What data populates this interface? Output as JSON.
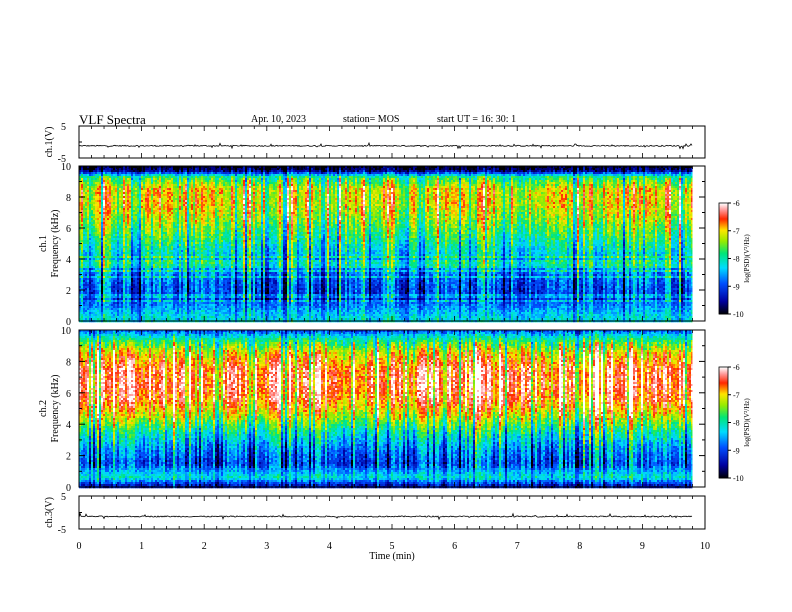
{
  "header": {
    "title": "VLF Spectra",
    "date": "Apr. 10, 2023",
    "station": "station= MOS",
    "start": "start  UT =   16: 30: 1"
  },
  "chart_data": [
    {
      "type": "line",
      "panel": "ch1-waveform",
      "ylabel": "ch.1(V)",
      "ylim": [
        -5,
        5
      ],
      "yticks": [
        "5",
        "-5"
      ],
      "x_range_min": [
        0,
        9.8
      ],
      "baseline_v": -1.2,
      "series_color": "#000000"
    },
    {
      "type": "heatmap",
      "panel": "ch1-spectrogram",
      "ylabel_lines": [
        "ch.1",
        "Frequency (kHz)"
      ],
      "ylim_khz": [
        0,
        10
      ],
      "yticks": [
        "0",
        "2",
        "4",
        "6",
        "8",
        "10"
      ],
      "x_range_min": [
        0,
        9.8
      ],
      "colorbar": {
        "label": "log(PSD)(V²/Hz)",
        "range": [
          -10,
          -6
        ],
        "ticks": [
          "-6",
          "-7",
          "-8",
          "-9",
          "-10"
        ]
      },
      "profile_by_khz": [
        [
          0.2,
          -8.2
        ],
        [
          0.6,
          -8.4
        ],
        [
          1.5,
          -9.0
        ],
        [
          2.5,
          -8.8
        ],
        [
          3.5,
          -8.5
        ],
        [
          4.5,
          -8.1
        ],
        [
          5.5,
          -7.7
        ],
        [
          6.5,
          -7.3
        ],
        [
          7.5,
          -7.0
        ],
        [
          8.5,
          -7.0
        ],
        [
          9.3,
          -7.8
        ],
        [
          9.7,
          -9.6
        ],
        [
          10.0,
          -10.0
        ]
      ]
    },
    {
      "type": "heatmap",
      "panel": "ch2-spectrogram",
      "ylabel_lines": [
        "ch.2",
        "Frequency (kHz)"
      ],
      "ylim_khz": [
        0,
        10
      ],
      "yticks": [
        "0",
        "2",
        "4",
        "6",
        "8",
        "10"
      ],
      "x_range_min": [
        0,
        9.8
      ],
      "colorbar": {
        "label": "log(PSD)(V²/Hz)",
        "range": [
          -10,
          -6
        ],
        "ticks": [
          "-6",
          "-7",
          "-8",
          "-9",
          "-10"
        ]
      },
      "profile_by_khz": [
        [
          0.1,
          -9.3
        ],
        [
          0.6,
          -8.1
        ],
        [
          1.5,
          -8.9
        ],
        [
          2.5,
          -8.5
        ],
        [
          3.5,
          -7.9
        ],
        [
          4.5,
          -7.1
        ],
        [
          5.5,
          -6.5
        ],
        [
          6.5,
          -6.3
        ],
        [
          7.5,
          -6.4
        ],
        [
          8.5,
          -6.9
        ],
        [
          9.2,
          -7.6
        ],
        [
          9.7,
          -8.3
        ],
        [
          10.0,
          -9.0
        ]
      ]
    },
    {
      "type": "line",
      "panel": "ch3-waveform",
      "ylabel": "ch.3(V)",
      "ylim": [
        -5,
        5
      ],
      "yticks": [
        "5",
        "-5"
      ],
      "xlabel": "Time  (min)",
      "xlim": [
        0,
        10
      ],
      "xticks": [
        "0",
        "1",
        "2",
        "3",
        "4",
        "5",
        "6",
        "7",
        "8",
        "9",
        "10"
      ],
      "x_range_min": [
        0,
        9.8
      ],
      "baseline_v": -1.2,
      "series_color": "#000000"
    }
  ]
}
